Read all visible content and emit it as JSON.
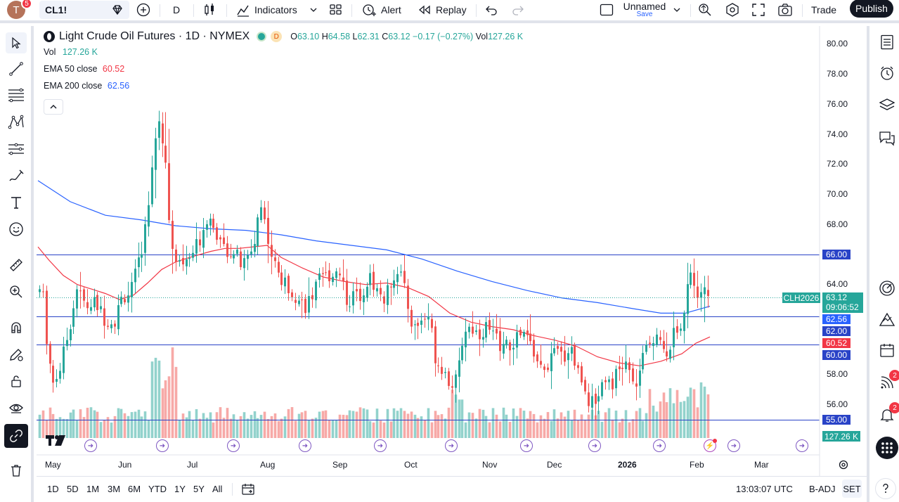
{
  "topbar": {
    "avatar_letter": "T",
    "avatar_badge": "5",
    "symbol": "CL1!",
    "interval": "D",
    "indicators_label": "Indicators",
    "alert_label": "Alert",
    "replay_label": "Replay",
    "layout_name": "Unnamed",
    "layout_sub": "Save",
    "trade_label": "Trade",
    "publish_label": "Publish"
  },
  "legend": {
    "title": "Light Crude Oil Futures · 1D · NYMEX",
    "open_label": "O",
    "open": "63.10",
    "high_label": "H",
    "high": "64.58",
    "low_label": "L",
    "low": "62.31",
    "close_label": "C",
    "close": "63.12",
    "change": "−0.17 (−0.27%)",
    "vol_label": "Vol",
    "vol": "127.26 K",
    "vol_row_label": "Vol",
    "vol_row_value": "127.26 K",
    "ema50_label": "EMA 50 close",
    "ema50_value": "60.52",
    "ema200_label": "EMA 200 close",
    "ema200_value": "62.56",
    "delay_badge": "D"
  },
  "price_axis": {
    "ticks": [
      "80.00",
      "78.00",
      "76.00",
      "74.00",
      "72.00",
      "70.00",
      "68.00",
      "66.00",
      "64.00",
      "62.00",
      "60.00",
      "58.00",
      "56.00"
    ],
    "labels": {
      "line_66": "66.00",
      "contract": "CLH2026",
      "last_price": "63.12",
      "countdown": "09:06:52",
      "ema200": "62.56",
      "ema50": "60.52",
      "line_60": "60.00",
      "line_55": "55.00",
      "volume": "127.26 K"
    }
  },
  "time_axis": [
    "May",
    "Jun",
    "Jul",
    "Aug",
    "Sep",
    "Oct",
    "Nov",
    "Dec",
    "2026",
    "Feb",
    "Mar"
  ],
  "bottom": {
    "ranges": [
      "1D",
      "5D",
      "1M",
      "3M",
      "6M",
      "YTD",
      "1Y",
      "5Y",
      "All"
    ],
    "clock": "13:03:07 UTC",
    "badj": "B-ADJ",
    "set": "SET"
  },
  "righttb": {
    "badge_ideas": "2",
    "badge_alerts": "2"
  },
  "colors": {
    "up": "#26a69a",
    "down": "#ef5350",
    "ema50": "#f23645",
    "ema200": "#2962ff",
    "hline": "#2943c7"
  },
  "chart_data": {
    "type": "candlestick",
    "y_range": [
      54.2,
      80.8
    ],
    "horizontal_lines": [
      66.0,
      60.0,
      55.0,
      61.9
    ],
    "last_price": 63.12
  }
}
